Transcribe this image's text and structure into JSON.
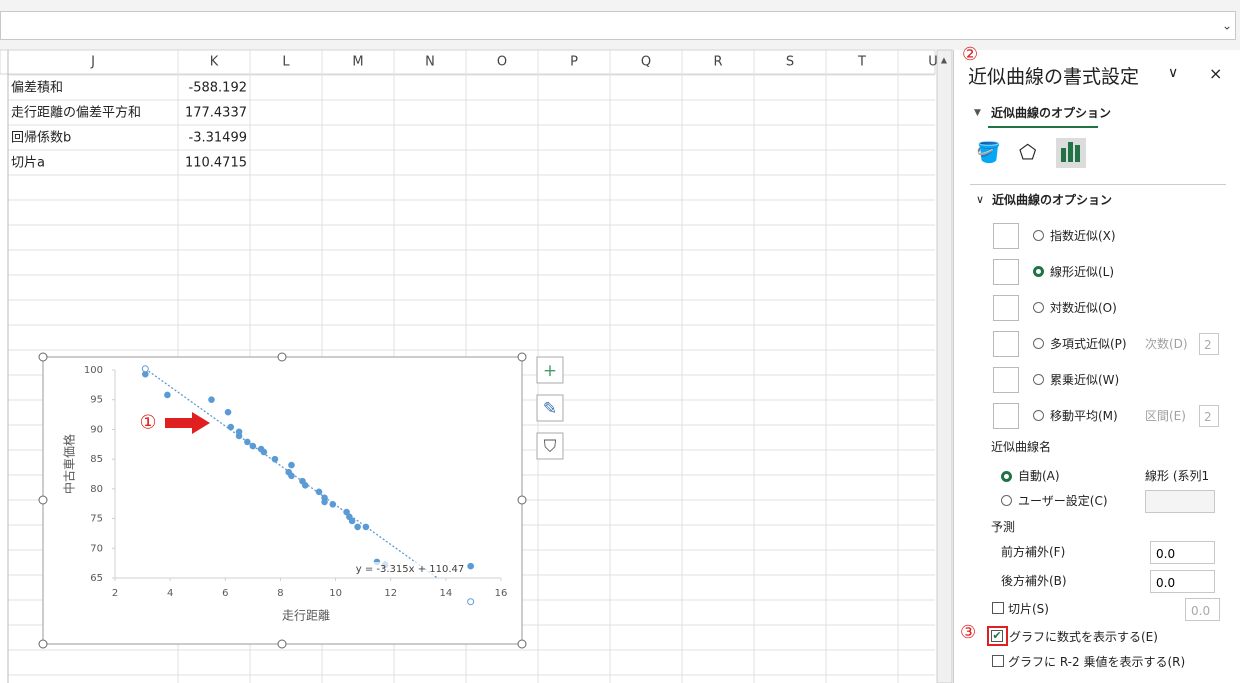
{
  "sheet": {
    "columns": [
      "J",
      "K",
      "L",
      "M",
      "N",
      "O",
      "P",
      "Q",
      "R",
      "S",
      "T",
      "U"
    ],
    "rows": [
      [
        "偏差積和",
        "-588.192"
      ],
      [
        "走行距離の偏差平方和",
        "177.4337"
      ],
      [
        "回帰係数b",
        "-3.31499"
      ],
      [
        "切片a",
        "110.4715"
      ]
    ]
  },
  "chart_data": {
    "type": "scatter",
    "color": "#5b9bd5",
    "x": [
      3.1,
      3.9,
      5.5,
      6.1,
      6.2,
      6.5,
      6.5,
      6.8,
      7.0,
      7.3,
      7.4,
      7.8,
      8.4,
      8.3,
      8.4,
      8.8,
      8.9,
      9.4,
      9.6,
      9.6,
      9.9,
      10.4,
      10.5,
      10.6,
      10.8,
      11.1,
      11.5,
      11.8,
      14.9
    ],
    "values": [
      99.3,
      95.8,
      95.0,
      92.9,
      90.4,
      89.6,
      88.9,
      87.9,
      87.2,
      86.7,
      86.2,
      85.0,
      84.0,
      82.8,
      82.2,
      81.3,
      80.6,
      79.5,
      78.5,
      77.8,
      77.4,
      76.1,
      75.3,
      74.6,
      73.6,
      73.6,
      67.7,
      67.2,
      67.0
    ],
    "xlim": [
      2,
      16
    ],
    "xticks": [
      2,
      4,
      6,
      8,
      10,
      12,
      14,
      16
    ],
    "ylim": [
      65,
      100
    ],
    "yticks": [
      65,
      70,
      75,
      80,
      85,
      90,
      95,
      100
    ],
    "x_label": "走行距離",
    "y_label": "中古車価格",
    "trendline": "linear",
    "trendline_label": "y = -3.315x + 110.47"
  },
  "annotations": [
    "①",
    "②",
    "③"
  ],
  "panel": {
    "title": "近似曲線の書式設定",
    "tab": "近似曲線のオプション",
    "section": "近似曲線のオプション",
    "options": [
      "指数近似(X)",
      "線形近似(L)",
      "対数近似(O)",
      "多項式近似(P)",
      "累乗近似(W)",
      "移動平均(M)"
    ],
    "order_label": "次数(D)",
    "order_value": "2",
    "period_label": "区間(E)",
    "period_value": "2",
    "name_heading": "近似曲線名",
    "auto": "自動(A)",
    "auto_name": "線形 (系列1",
    "custom": "ユーザー設定(C)",
    "forecast": "予測",
    "forward": "前方補外(F)",
    "forward_value": "0.0",
    "backward": "後方補外(B)",
    "backward_value": "0.0",
    "intercept": "切片(S)",
    "intercept_value": "0.0",
    "show_equation": "グラフに数式を表示する(E)",
    "show_r2": "グラフに R-2 乗値を表示する(R)"
  }
}
